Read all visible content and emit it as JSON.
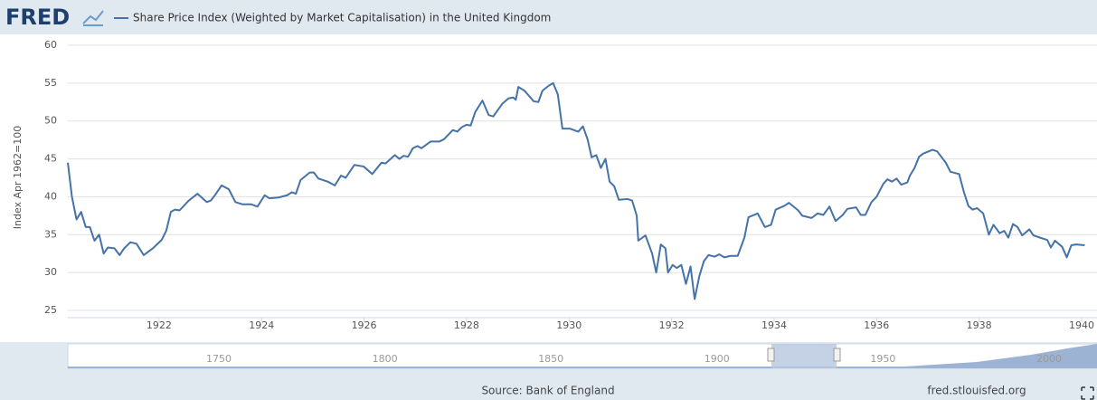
{
  "brand": "FRED",
  "chart_data": {
    "type": "line",
    "ylabel": "Index Apr 1962=100",
    "xlim": [
      1920.22,
      1940.3
    ],
    "xticks": [
      1922,
      1924,
      1926,
      1928,
      1930,
      1932,
      1934,
      1936,
      1938,
      1940
    ],
    "ylim": [
      25,
      60
    ],
    "yticks": [
      25,
      30,
      35,
      40,
      45,
      50,
      55,
      60
    ],
    "grid": true,
    "x": [
      1920.22,
      1920.3,
      1920.39,
      1920.48,
      1920.57,
      1920.65,
      1920.74,
      1920.83,
      1920.92,
      1921.0,
      1921.13,
      1921.23,
      1921.32,
      1921.44,
      1921.56,
      1921.7,
      1921.88,
      1922.05,
      1922.14,
      1922.23,
      1922.31,
      1922.4,
      1922.58,
      1922.75,
      1922.93,
      1923.01,
      1923.1,
      1923.22,
      1923.36,
      1923.49,
      1923.63,
      1923.8,
      1923.92,
      1924.06,
      1924.15,
      1924.33,
      1924.5,
      1924.59,
      1924.67,
      1924.76,
      1924.94,
      1925.02,
      1925.11,
      1925.29,
      1925.43,
      1925.55,
      1925.64,
      1925.81,
      1925.99,
      1926.16,
      1926.34,
      1926.42,
      1926.6,
      1926.69,
      1926.77,
      1926.86,
      1926.95,
      1927.04,
      1927.12,
      1927.3,
      1927.47,
      1927.56,
      1927.73,
      1927.82,
      1927.91,
      1928.0,
      1928.08,
      1928.17,
      1928.31,
      1928.43,
      1928.52,
      1928.7,
      1928.82,
      1928.91,
      1928.96,
      1929.01,
      1929.13,
      1929.31,
      1929.4,
      1929.48,
      1929.61,
      1929.69,
      1929.78,
      1929.87,
      1930.01,
      1930.18,
      1930.27,
      1930.36,
      1930.44,
      1930.53,
      1930.62,
      1930.71,
      1930.79,
      1930.88,
      1930.97,
      1931.14,
      1931.23,
      1931.32,
      1931.35,
      1931.49,
      1931.62,
      1931.7,
      1931.79,
      1931.88,
      1931.93,
      1932.02,
      1932.1,
      1932.19,
      1932.28,
      1932.37,
      1932.45,
      1932.54,
      1932.63,
      1932.72,
      1932.84,
      1932.93,
      1933.03,
      1933.15,
      1933.29,
      1933.42,
      1933.5,
      1933.68,
      1933.82,
      1933.94,
      1934.03,
      1934.2,
      1934.29,
      1934.47,
      1934.55,
      1934.73,
      1934.85,
      1934.96,
      1935.08,
      1935.2,
      1935.34,
      1935.43,
      1935.6,
      1935.69,
      1935.78,
      1935.9,
      1936.0,
      1936.13,
      1936.21,
      1936.3,
      1936.39,
      1936.48,
      1936.6,
      1936.65,
      1936.74,
      1936.83,
      1936.91,
      1937.09,
      1937.18,
      1937.35,
      1937.44,
      1937.61,
      1937.7,
      1937.79,
      1937.87,
      1937.96,
      1938.08,
      1938.19,
      1938.28,
      1938.4,
      1938.49,
      1938.57,
      1938.66,
      1938.75,
      1938.84,
      1938.98,
      1939.06,
      1939.19,
      1939.33,
      1939.4,
      1939.48,
      1939.62,
      1939.71,
      1939.8,
      1939.89,
      1940.06
    ],
    "series": [
      {
        "name": "Share Price Index (Weighted by Market Capitalisation) in the United Kingdom",
        "color": "#4572a7",
        "values": [
          44.5,
          40,
          37,
          38,
          36,
          36,
          34.2,
          35,
          32.5,
          33.3,
          33.2,
          32.3,
          33.2,
          34,
          33.8,
          32.3,
          33.2,
          34.3,
          35.5,
          38,
          38.3,
          38.2,
          39.5,
          40.4,
          39.3,
          39.5,
          40.3,
          41.5,
          41,
          39.3,
          39,
          39,
          38.7,
          40.2,
          39.8,
          39.9,
          40.2,
          40.6,
          40.4,
          42.2,
          43.2,
          43.2,
          42.4,
          42,
          41.5,
          42.8,
          42.5,
          44.2,
          44,
          43,
          44.5,
          44.4,
          45.5,
          45,
          45.4,
          45.3,
          46.4,
          46.7,
          46.4,
          47.3,
          47.3,
          47.6,
          48.8,
          48.6,
          49.2,
          49.5,
          49.4,
          51.2,
          52.7,
          50.8,
          50.6,
          52.3,
          53,
          53.1,
          52.8,
          54.5,
          54,
          52.6,
          52.5,
          54,
          54.7,
          55,
          53.5,
          49,
          49,
          48.6,
          49.3,
          47.6,
          45.2,
          45.5,
          43.8,
          45,
          42,
          41.4,
          39.6,
          39.7,
          39.5,
          37.5,
          34.2,
          34.9,
          32.5,
          30,
          33.7,
          33.2,
          30,
          31,
          30.6,
          31,
          28.5,
          30.8,
          26.5,
          29.5,
          31.5,
          32.3,
          32.1,
          32.4,
          32,
          32.2,
          32.2,
          34.6,
          37.3,
          37.8,
          36,
          36.3,
          38.3,
          38.8,
          39.2,
          38.2,
          37.5,
          37.2,
          37.8,
          37.6,
          38.7,
          36.8,
          37.6,
          38.4,
          38.6,
          37.6,
          37.6,
          39.3,
          40,
          41.7,
          42.3,
          42,
          42.4,
          41.6,
          41.9,
          42.8,
          43.8,
          45.3,
          45.7,
          46.2,
          46,
          44.5,
          43.3,
          43,
          40.7,
          38.8,
          38.3,
          38.5,
          37.8,
          35,
          36.3,
          35.2,
          35.5,
          34.6,
          36.4,
          36,
          34.9,
          35.7,
          34.9,
          34.6,
          34.3,
          33.3,
          34.2,
          33.4,
          32,
          33.6,
          33.7,
          33.6
        ]
      }
    ]
  },
  "navigator": {
    "labels": [
      "1750",
      "1800",
      "1850",
      "1900",
      "1950",
      "2000"
    ]
  },
  "footer": {
    "source": "Source: Bank of England",
    "site": "fred.stlouisfed.org"
  }
}
